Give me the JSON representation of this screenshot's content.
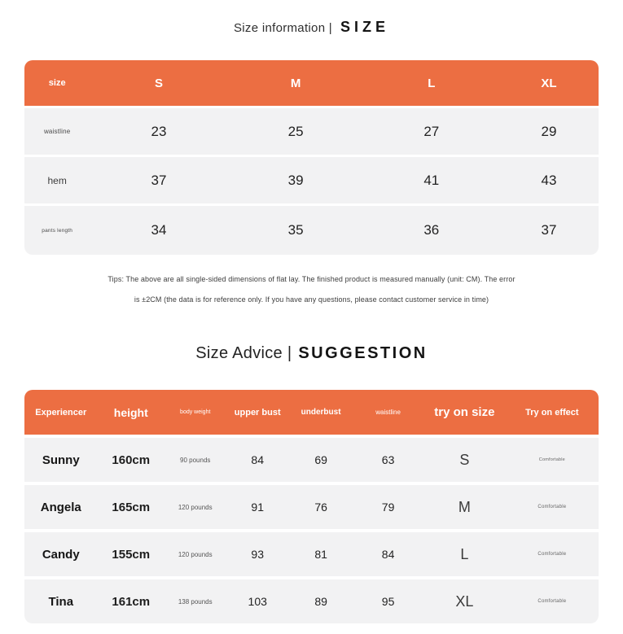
{
  "colors": {
    "accent_orange": "#EC6E42",
    "row_background": "#F2F2F3",
    "page_background": "#FFFFFF"
  },
  "size_section": {
    "title_left": "Size information |",
    "title_right": "SIZE",
    "header": {
      "label": "size",
      "columns": [
        "S",
        "M",
        "L",
        "XL"
      ]
    },
    "rows": [
      {
        "label": "waistline",
        "values": [
          "23",
          "25",
          "27",
          "29"
        ]
      },
      {
        "label": "hem",
        "values": [
          "37",
          "39",
          "41",
          "43"
        ]
      },
      {
        "label": "pants length",
        "values": [
          "34",
          "35",
          "36",
          "37"
        ]
      }
    ],
    "tips_line1": "Tips: The above are all single-sided dimensions of flat lay. The finished product is measured manually (unit: CM). The error",
    "tips_line2": "is ±2CM (the data is for reference only. If you have any questions, please contact customer service in time)"
  },
  "advice_section": {
    "title_left": "Size Advice |",
    "title_right": "SUGGESTION",
    "header": {
      "columns": [
        "Experiencer",
        "height",
        "body weight",
        "upper bust",
        "underbust",
        "waistline",
        "try on size",
        "Try on effect"
      ]
    },
    "rows": [
      {
        "name": "Sunny",
        "height": "160cm",
        "weight": "90 pounds",
        "upper_bust": "84",
        "underbust": "69",
        "waistline": "63",
        "size": "S",
        "effect": "Comfortable"
      },
      {
        "name": "Angela",
        "height": "165cm",
        "weight": "120 pounds",
        "upper_bust": "91",
        "underbust": "76",
        "waistline": "79",
        "size": "M",
        "effect": "Comfortable"
      },
      {
        "name": "Candy",
        "height": "155cm",
        "weight": "120 pounds",
        "upper_bust": "93",
        "underbust": "81",
        "waistline": "84",
        "size": "L",
        "effect": "Comfortable"
      },
      {
        "name": "Tina",
        "height": "161cm",
        "weight": "138 pounds",
        "upper_bust": "103",
        "underbust": "89",
        "waistline": "95",
        "size": "XL",
        "effect": "Comfortable"
      }
    ]
  }
}
